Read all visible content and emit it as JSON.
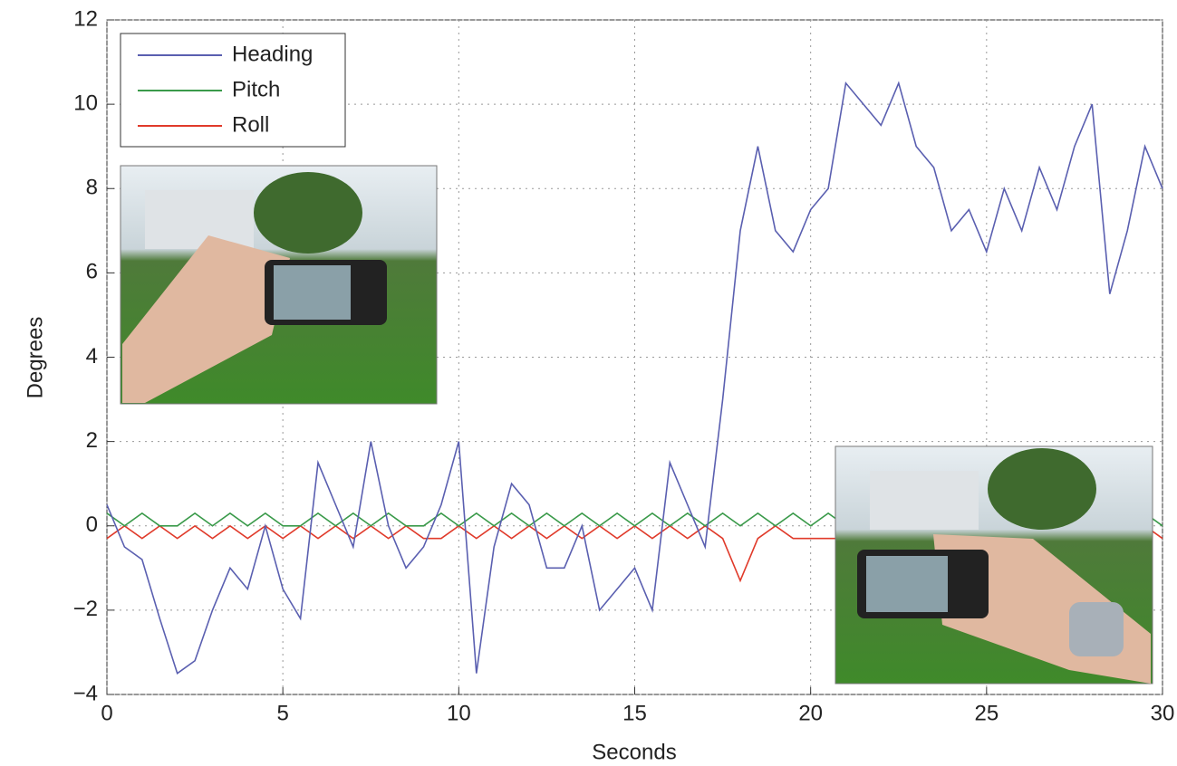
{
  "chart_data": {
    "type": "line",
    "x_label": "Seconds",
    "y_label": "Degrees",
    "x": [
      0,
      0.5,
      1,
      1.5,
      2,
      2.5,
      3,
      3.5,
      4,
      4.5,
      5,
      5.5,
      6,
      6.5,
      7,
      7.5,
      8,
      8.5,
      9,
      9.5,
      10,
      10.5,
      11,
      11.5,
      12,
      12.5,
      13,
      13.5,
      14,
      14.5,
      15,
      15.5,
      16,
      16.5,
      17,
      17.5,
      18,
      18.5,
      19,
      19.5,
      20,
      20.5,
      21,
      21.5,
      22,
      22.5,
      23,
      23.5,
      24,
      24.5,
      25,
      25.5,
      26,
      26.5,
      27,
      27.5,
      28,
      28.5,
      29,
      29.5,
      30
    ],
    "series": [
      {
        "name": "Heading",
        "color": "#5a5fb0",
        "values": [
          0.5,
          -0.5,
          -0.8,
          -2.2,
          -3.5,
          -3.2,
          -2,
          -1,
          -1.5,
          0,
          -1.5,
          -2.2,
          1.5,
          0.5,
          -0.5,
          2,
          0,
          -1,
          -0.5,
          0.5,
          2,
          -3.5,
          -0.5,
          1,
          0.5,
          -1,
          -1,
          0,
          -2,
          -1.5,
          -1,
          -2,
          1.5,
          0.5,
          -0.5,
          3,
          7,
          9,
          7,
          6.5,
          7.5,
          8,
          10.5,
          10,
          9.5,
          10.5,
          9,
          8.5,
          7,
          7.5,
          6.5,
          8,
          7,
          8.5,
          7.5,
          9,
          10,
          5.5,
          7,
          9,
          8
        ]
      },
      {
        "name": "Pitch",
        "color": "#3a9a4a",
        "values": [
          0.3,
          0,
          0.3,
          0,
          0,
          0.3,
          0,
          0.3,
          0,
          0.3,
          0,
          0,
          0.3,
          0,
          0.3,
          0,
          0.3,
          0,
          0,
          0.3,
          0,
          0.3,
          0,
          0.3,
          0,
          0.3,
          0,
          0.3,
          0,
          0.3,
          0,
          0.3,
          0,
          0.3,
          0,
          0.3,
          0,
          0.3,
          0,
          0.3,
          0,
          0.3,
          0,
          0.3,
          0,
          0.3,
          0,
          0.3,
          0,
          0.3,
          0,
          0.3,
          0,
          0.3,
          0,
          0.3,
          0,
          0.3,
          0,
          0.3,
          0
        ]
      },
      {
        "name": "Roll",
        "color": "#e03a2a",
        "values": [
          -0.3,
          0,
          -0.3,
          0,
          -0.3,
          0,
          -0.3,
          0,
          -0.3,
          0,
          -0.3,
          0,
          -0.3,
          0,
          -0.3,
          0,
          -0.3,
          0,
          -0.3,
          -0.3,
          0,
          -0.3,
          0,
          -0.3,
          0,
          -0.3,
          0,
          -0.3,
          0,
          -0.3,
          0,
          -0.3,
          0,
          -0.3,
          0,
          -0.3,
          -1.3,
          -0.3,
          0,
          -0.3,
          -0.3,
          -0.3,
          -0.3,
          -0.3,
          -0.3,
          -0.3,
          -0.3,
          -0.3,
          -0.3,
          -0.3,
          -0.3,
          -0.3,
          -0.3,
          -0.3,
          -0.3,
          -0.3,
          -0.3,
          -0.3,
          -0.3,
          0,
          -0.3
        ]
      }
    ],
    "xlim": [
      0,
      30
    ],
    "xticks": [
      0,
      5,
      10,
      15,
      20,
      25,
      30
    ],
    "ylim": [
      -4,
      12
    ],
    "yticks": [
      {
        "value": -4,
        "label": "−4"
      },
      {
        "value": -2,
        "label": "−2"
      },
      0,
      2,
      4,
      6,
      8,
      10,
      12
    ],
    "grid": true,
    "legend": "upper left"
  }
}
